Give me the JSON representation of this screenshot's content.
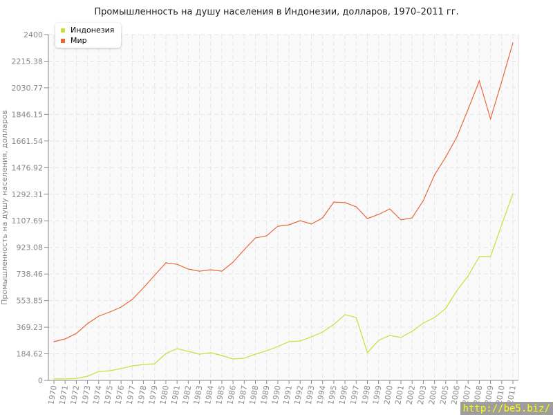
{
  "chart_data": {
    "type": "line",
    "title": "Промышленность на душу населения в Индонезии, долларов, 1970–2011 гг.",
    "ylabel": "Промышленность на душу населения, долларов",
    "xlabel": "",
    "ylim": [
      0,
      2400
    ],
    "yticks": [
      "0",
      "184.62",
      "369.23",
      "553.85",
      "738.46",
      "923.08",
      "1107.69",
      "1292.31",
      "1476.92",
      "1661.54",
      "1846.15",
      "2030.77",
      "2215.38",
      "2400"
    ],
    "x": [
      1970,
      1971,
      1972,
      1973,
      1974,
      1975,
      1976,
      1977,
      1978,
      1979,
      1980,
      1981,
      1982,
      1983,
      1984,
      1985,
      1986,
      1987,
      1988,
      1989,
      1990,
      1991,
      1992,
      1993,
      1994,
      1995,
      1996,
      1997,
      1998,
      1999,
      2000,
      2001,
      2002,
      2003,
      2004,
      2005,
      2006,
      2007,
      2008,
      2009,
      2010,
      2011
    ],
    "grid": true,
    "legend_position": "top-left",
    "series": [
      {
        "name": "Индонезия",
        "color": "#c5e03a",
        "values": [
          10,
          10,
          14,
          29,
          62,
          67,
          82,
          101,
          110,
          115,
          187,
          221,
          202,
          182,
          192,
          173,
          149,
          154,
          182,
          206,
          235,
          269,
          274,
          302,
          336,
          389,
          456,
          437,
          192,
          278,
          312,
          298,
          341,
          398,
          437,
          499,
          624,
          725,
          859,
          859,
          1080,
          1296
        ]
      },
      {
        "name": "Мир",
        "color": "#e8673a",
        "values": [
          269,
          288,
          326,
          394,
          446,
          475,
          509,
          562,
          643,
          730,
          816,
          806,
          773,
          758,
          768,
          758,
          821,
          907,
          989,
          1003,
          1070,
          1080,
          1109,
          1085,
          1128,
          1238,
          1234,
          1205,
          1123,
          1152,
          1190,
          1114,
          1128,
          1248,
          1426,
          1550,
          1690,
          1882,
          2079,
          1815,
          2074,
          2343
        ]
      }
    ]
  },
  "watermark": "http://be5.biz/"
}
